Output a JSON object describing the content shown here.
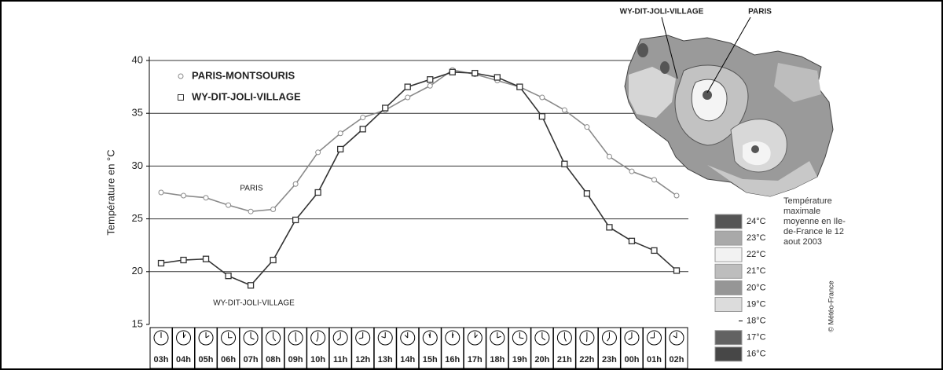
{
  "chart_data": {
    "type": "line",
    "ylabel": "Température en °C",
    "categories": [
      "03h",
      "04h",
      "05h",
      "06h",
      "07h",
      "08h",
      "09h",
      "10h",
      "11h",
      "12h",
      "13h",
      "14h",
      "15h",
      "16h",
      "17h",
      "18h",
      "19h",
      "20h",
      "21h",
      "22h",
      "23h",
      "00h",
      "01h",
      "02h"
    ],
    "series": [
      {
        "name": "PARIS-MONTSOURIS",
        "color": "#8a8a8a",
        "marker": "circle",
        "values": [
          27.5,
          27.2,
          27.0,
          26.3,
          25.7,
          25.9,
          28.3,
          31.3,
          33.1,
          34.6,
          35.3,
          36.5,
          37.6,
          39.1,
          38.7,
          38.1,
          37.5,
          36.5,
          35.3,
          33.7,
          30.9,
          29.5,
          28.7,
          27.2
        ]
      },
      {
        "name": "WY-DIT-JOLI-VILLAGE",
        "color": "#333333",
        "marker": "square",
        "values": [
          20.8,
          21.1,
          21.2,
          19.6,
          18.7,
          21.1,
          24.9,
          27.5,
          31.6,
          33.5,
          35.5,
          37.5,
          38.2,
          38.9,
          38.8,
          38.4,
          37.5,
          34.7,
          30.2,
          27.4,
          24.2,
          22.9,
          22.0,
          20.1
        ]
      }
    ],
    "annotations": [
      "PARIS",
      "WY-DIT-JOLI-VILLAGE"
    ],
    "ylim": [
      15,
      40
    ],
    "yticks": [
      15,
      20,
      25,
      30,
      35,
      40
    ],
    "grid": true
  },
  "map": {
    "labels": [
      "WY-DIT-JOLI-VILLAGE",
      "PARIS"
    ],
    "caption": "Température maximale moyenne en Ile-de-France le 12 aout 2003",
    "credit": "© Météo-France",
    "legend": [
      {
        "label": "24°C",
        "color": "#555555"
      },
      {
        "label": "23°C",
        "color": "#a9a9a9"
      },
      {
        "label": "22°C",
        "color": "#f2f2f2"
      },
      {
        "label": "21°C",
        "color": "#bdbdbd"
      },
      {
        "label": "20°C",
        "color": "#969696"
      },
      {
        "label": "19°C",
        "color": "#dcdcdc"
      },
      {
        "label": "18°C"
      },
      {
        "label": "17°C",
        "color": "#626262"
      },
      {
        "label": "16°C",
        "color": "#474747"
      }
    ]
  }
}
